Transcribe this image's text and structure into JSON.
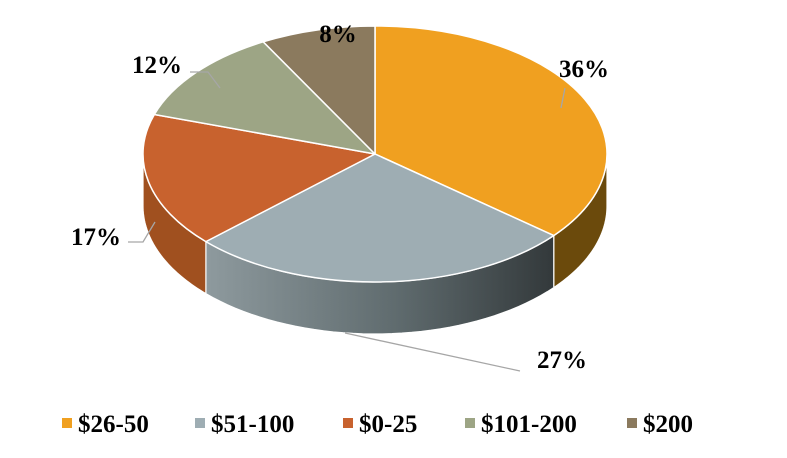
{
  "chart_data": {
    "type": "pie",
    "style": "3d",
    "title": "",
    "legend_position": "bottom",
    "slices": [
      {
        "label": "$26-50",
        "value": 36,
        "value_label": "36%",
        "color": "#F0A020",
        "side_color": "#6B4A0C"
      },
      {
        "label": "$51-100",
        "value": 27,
        "value_label": "27%",
        "color": "#9EADB3",
        "side_color": "#4E5A5E"
      },
      {
        "label": "$0-25",
        "value": 17,
        "value_label": "17%",
        "color": "#C8622E",
        "side_color": "#A0501F"
      },
      {
        "label": "$101-200",
        "value": 12,
        "value_label": "12%",
        "color": "#9DA585",
        "side_color": "#6E7560"
      },
      {
        "label": "$200",
        "value": 8,
        "value_label": "8%",
        "color": "#8B7A5E",
        "side_color": "#5E5240"
      }
    ]
  }
}
